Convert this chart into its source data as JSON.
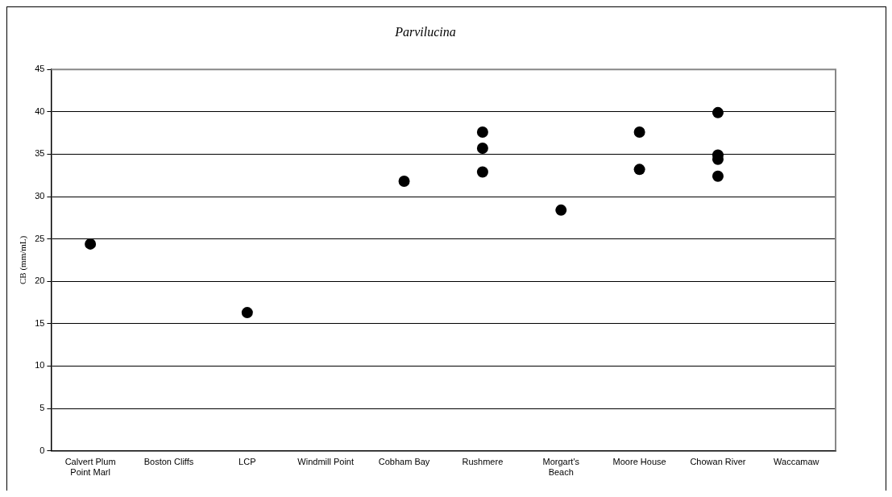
{
  "chart_data": {
    "type": "scatter",
    "title": "Parvilucina",
    "ylabel": "CB (mm/mL)",
    "categories": [
      "Calvert Plum Point Marl",
      "Boston Cliffs",
      "LCP",
      "Windmill Point",
      "Cobham Bay",
      "Rushmere",
      "Morgart's Beach",
      "Moore House",
      "Chowan River",
      "Waccamaw"
    ],
    "series": [
      {
        "color": "#000000",
        "x": [
          "Calvert Plum Point Marl",
          "LCP",
          "Cobham Bay",
          "Rushmere",
          "Rushmere",
          "Rushmere",
          "Morgart's Beach",
          "Moore House",
          "Moore House",
          "Chowan River",
          "Chowan River",
          "Chowan River",
          "Chowan River"
        ],
        "values": [
          24.4,
          16.3,
          31.8,
          37.6,
          35.7,
          32.9,
          28.4,
          37.6,
          33.2,
          39.9,
          34.9,
          34.4,
          32.4
        ]
      }
    ],
    "ylim": [
      0,
      45
    ],
    "yticks": [
      0,
      5,
      10,
      15,
      20,
      25,
      30,
      35,
      40,
      45
    ],
    "grid": "y",
    "marker": "circle",
    "legend": false
  }
}
